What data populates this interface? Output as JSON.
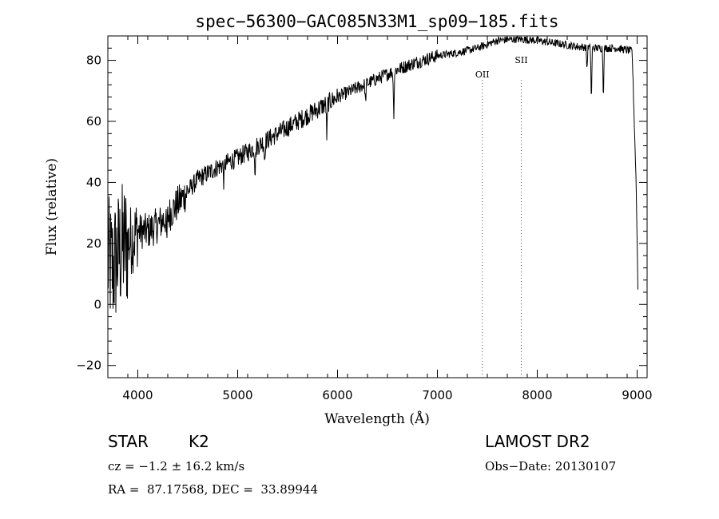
{
  "chart_data": {
    "type": "line",
    "title": "spec−56300−GAC085N33M1_sp09−185.fits",
    "xlabel": "Wavelength (Å)",
    "ylabel": "Flux (relative)",
    "xlim": [
      3700,
      9100
    ],
    "ylim": [
      -24,
      88
    ],
    "x_ticks": [
      4000,
      5000,
      6000,
      7000,
      8000,
      9000
    ],
    "y_ticks": [
      -20,
      0,
      20,
      40,
      60,
      80
    ],
    "x_tick_labels": [
      "4000",
      "5000",
      "6000",
      "7000",
      "8000",
      "9000"
    ],
    "y_tick_labels": [
      "−20",
      "0",
      "20",
      "40",
      "60",
      "80"
    ],
    "grid": false,
    "line_color": "#000000",
    "series": [
      {
        "x": [
          3700,
          3750,
          3800,
          3850,
          3900,
          3950,
          4000,
          4100,
          4200,
          4300,
          4400,
          4500,
          4600,
          4800,
          5000,
          5200,
          5400,
          5600,
          5800,
          6000,
          6200,
          6400,
          6600,
          6800,
          7000,
          7200,
          7400,
          7600,
          7800,
          8000,
          8200,
          8400,
          8600,
          8800,
          8950,
          8990,
          9010
        ],
        "y": [
          14,
          12,
          16,
          19,
          20,
          22,
          24,
          24,
          26,
          29,
          33,
          37,
          41,
          45,
          48,
          52,
          56,
          60,
          64,
          68,
          71,
          74,
          77,
          79.5,
          81.5,
          82.5,
          84,
          86.5,
          87,
          86.5,
          85.5,
          84.5,
          84,
          84,
          83,
          40,
          1
        ]
      }
    ],
    "absorption_lines": [
      {
        "x": 4290,
        "depth": 8
      },
      {
        "x": 4862,
        "depth": 6
      },
      {
        "x": 5175,
        "depth": 8
      },
      {
        "x": 5270,
        "depth": 6
      },
      {
        "x": 5893,
        "depth": 11
      },
      {
        "x": 6280,
        "depth": 6
      },
      {
        "x": 6563,
        "depth": 14
      },
      {
        "x": 8498,
        "depth": 7
      },
      {
        "x": 8542,
        "depth": 17
      },
      {
        "x": 8662,
        "depth": 15
      }
    ],
    "annotations": [
      {
        "label": "OII",
        "x": 7450
      },
      {
        "label": "SII",
        "x": 7840
      }
    ]
  },
  "info": {
    "object_class": "STAR",
    "subclass": "K2",
    "cz": "cz = −1.2 ± 16.2 km/s",
    "coords": "RA =  87.17568, DEC =  33.89944",
    "survey": "LAMOST DR2",
    "obs_date": "Obs−Date: 20130107"
  }
}
